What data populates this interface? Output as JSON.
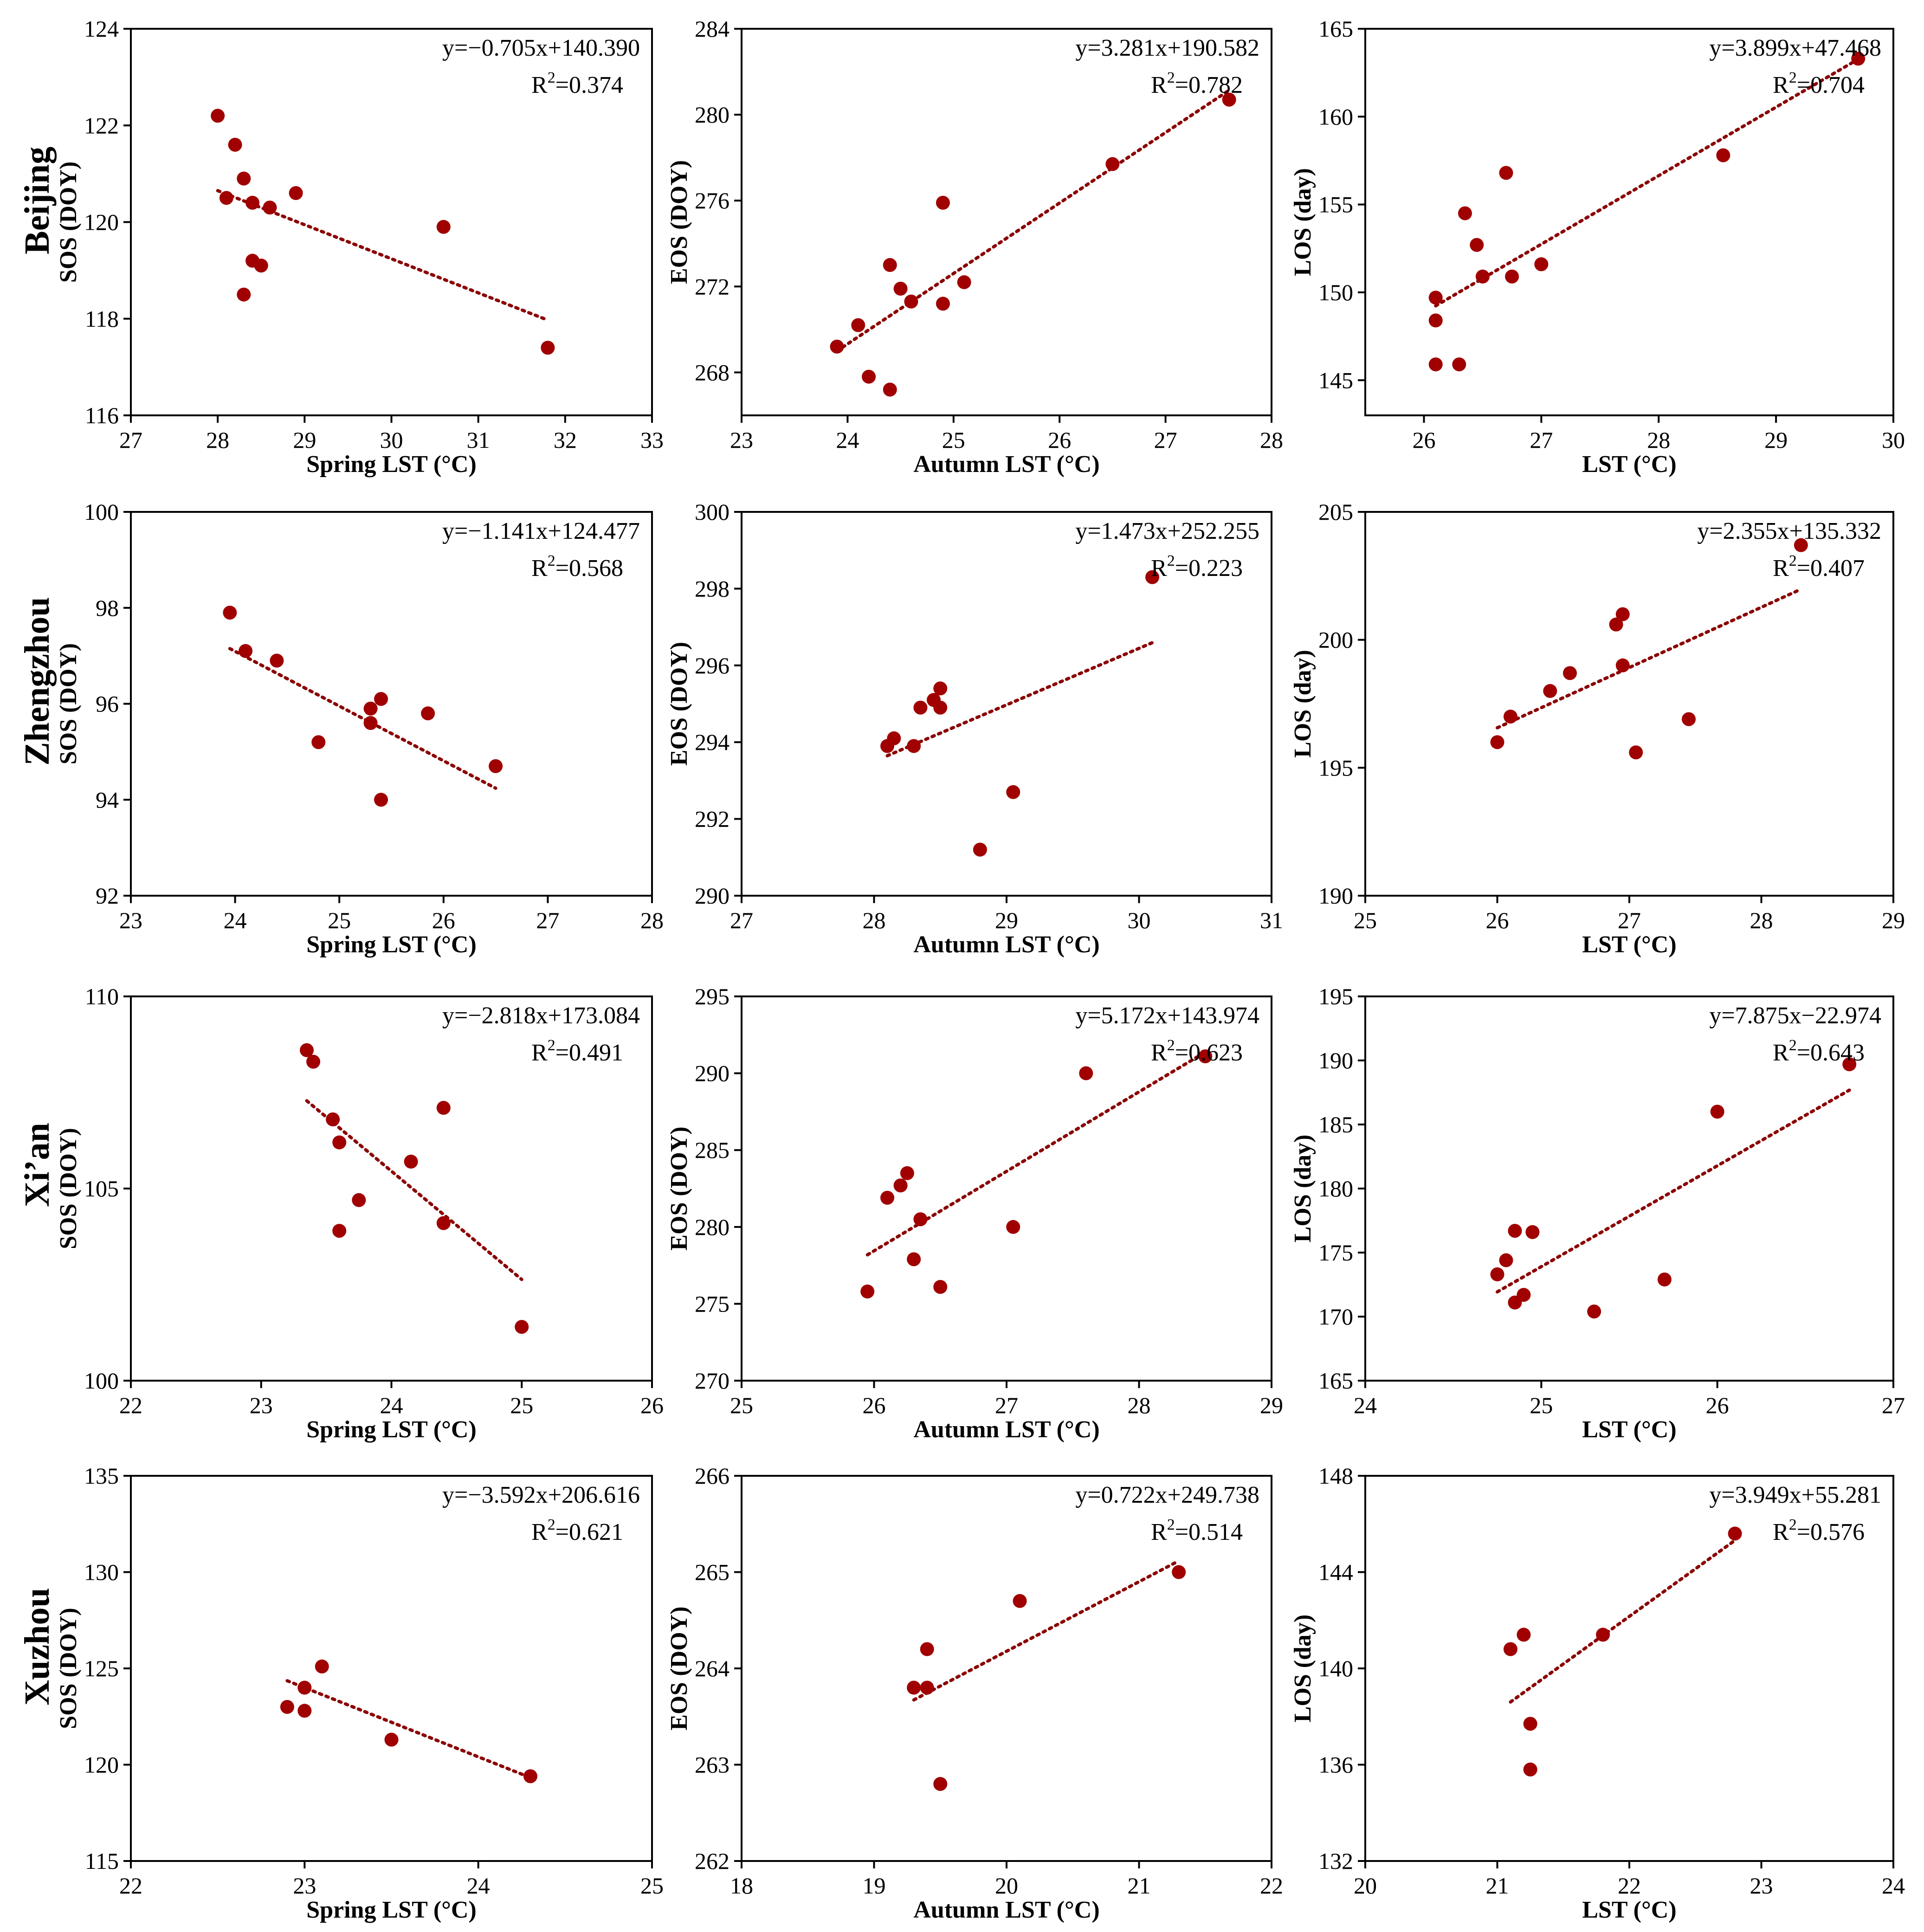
{
  "colors": {
    "point": "#a00000",
    "fit_line": "#8b0000",
    "axis": "#000000"
  },
  "chart_data": [
    {
      "type": "scatter",
      "row": 0,
      "col": 0,
      "city": "Beijing",
      "xlabel": "Spring LST (°C)",
      "ylabel": "SOS (DOY)",
      "xlim": [
        27,
        33
      ],
      "xticks": [
        27,
        28,
        29,
        30,
        31,
        32,
        33
      ],
      "ylim": [
        116,
        124
      ],
      "yticks": [
        116,
        118,
        120,
        122,
        124
      ],
      "equation": "y=−0.705x+140.390",
      "r2_prefix": "R",
      "r2_sup": "2",
      "r2_value": "=0.374",
      "fit_x": [
        28,
        31.8
      ],
      "x": [
        28,
        28.1,
        28.2,
        28.3,
        28.3,
        28.4,
        28.4,
        28.5,
        28.6,
        28.9,
        30.6,
        31.8
      ],
      "y": [
        122.2,
        120.5,
        121.6,
        120.9,
        118.5,
        120.4,
        119.2,
        119.1,
        120.3,
        120.6,
        119.9,
        117.4
      ]
    },
    {
      "type": "scatter",
      "row": 0,
      "col": 1,
      "city": "Beijing",
      "xlabel": "Autumn LST (°C)",
      "ylabel": "EOS (DOY)",
      "xlim": [
        23,
        28
      ],
      "xticks": [
        23,
        24,
        25,
        26,
        27,
        28
      ],
      "ylim": [
        266,
        284
      ],
      "yticks": [
        268,
        272,
        276,
        280,
        284
      ],
      "equation": "y=3.281x+190.582",
      "r2_prefix": "R",
      "r2_sup": "2",
      "r2_value": "=0.782",
      "fit_x": [
        23.9,
        27.6
      ],
      "x": [
        23.9,
        24.1,
        24.2,
        24.4,
        24.4,
        24.5,
        24.6,
        24.9,
        24.9,
        25.1,
        26.5,
        27.6
      ],
      "y": [
        269.2,
        270.2,
        267.8,
        273.0,
        267.2,
        271.9,
        271.3,
        275.9,
        271.2,
        272.2,
        277.7,
        280.7
      ]
    },
    {
      "type": "scatter",
      "row": 0,
      "col": 2,
      "city": "Beijing",
      "xlabel": "LST (°C)",
      "ylabel": "LOS (day)",
      "xlim": [
        25.5,
        30
      ],
      "xticks": [
        26,
        27,
        28,
        29,
        30
      ],
      "ylim": [
        143,
        165
      ],
      "yticks": [
        145,
        150,
        155,
        160,
        165
      ],
      "equation": "y=3.899x+47.468",
      "r2_prefix": "R",
      "r2_sup": "2",
      "r2_value": "=0.704",
      "fit_x": [
        26.1,
        29.7
      ],
      "x": [
        26.1,
        26.1,
        26.1,
        26.3,
        26.35,
        26.45,
        26.5,
        26.7,
        26.75,
        27,
        28.55,
        29.7
      ],
      "y": [
        149.7,
        148.4,
        145.9,
        145.9,
        154.5,
        152.7,
        150.9,
        156.8,
        150.9,
        151.6,
        157.8,
        163.3
      ]
    },
    {
      "type": "scatter",
      "row": 1,
      "col": 0,
      "city": "Zhengzhou",
      "xlabel": "Spring LST (°C)",
      "ylabel": "SOS (DOY)",
      "xlim": [
        23,
        28
      ],
      "xticks": [
        23,
        24,
        25,
        26,
        27,
        28
      ],
      "ylim": [
        92,
        100
      ],
      "yticks": [
        92,
        94,
        96,
        98,
        100
      ],
      "equation": "y=−1.141x+124.477",
      "r2_prefix": "R",
      "r2_sup": "2",
      "r2_value": "=0.568",
      "fit_x": [
        23.95,
        26.5
      ],
      "x": [
        23.95,
        24.1,
        24.4,
        24.8,
        25.3,
        25.3,
        25.4,
        25.4,
        25.85,
        26.5
      ],
      "y": [
        97.9,
        97.1,
        96.9,
        95.2,
        95.9,
        95.6,
        96.1,
        94.0,
        95.8,
        94.7
      ]
    },
    {
      "type": "scatter",
      "row": 1,
      "col": 1,
      "city": "Zhengzhou",
      "xlabel": "Autumn LST (°C)",
      "ylabel": "EOS (DOY)",
      "xlim": [
        27,
        31
      ],
      "xticks": [
        27,
        28,
        29,
        30,
        31
      ],
      "ylim": [
        290,
        300
      ],
      "yticks": [
        290,
        292,
        294,
        296,
        298,
        300
      ],
      "equation": "y=1.473x+252.255",
      "r2_prefix": "R",
      "r2_sup": "2",
      "r2_value": "=0.223",
      "fit_x": [
        28.1,
        30.1
      ],
      "x": [
        28.1,
        28.15,
        28.3,
        28.35,
        28.45,
        28.5,
        28.5,
        28.8,
        29.05,
        30.1
      ],
      "y": [
        293.9,
        294.1,
        293.9,
        294.9,
        295.1,
        295.4,
        294.9,
        291.2,
        292.7,
        298.3
      ]
    },
    {
      "type": "scatter",
      "row": 1,
      "col": 2,
      "city": "Zhengzhou",
      "xlabel": "LST (°C)",
      "ylabel": "LOS (day)",
      "xlim": [
        25,
        29
      ],
      "xticks": [
        25,
        26,
        27,
        28,
        29
      ],
      "ylim": [
        190,
        205
      ],
      "yticks": [
        190,
        195,
        200,
        205
      ],
      "equation": "y=2.355x+135.332",
      "r2_prefix": "R",
      "r2_sup": "2",
      "r2_value": "=0.407",
      "fit_x": [
        26.0,
        28.3
      ],
      "x": [
        26.0,
        26.1,
        26.4,
        26.55,
        26.9,
        26.95,
        26.95,
        27.05,
        27.45,
        28.3
      ],
      "y": [
        196.0,
        197.0,
        198.0,
        198.7,
        200.6,
        199.0,
        201.0,
        195.6,
        196.9,
        203.7
      ]
    },
    {
      "type": "scatter",
      "row": 2,
      "col": 0,
      "city": "Xi’an",
      "xlabel": "Spring LST (°C)",
      "ylabel": "SOS (DOY)",
      "xlim": [
        22,
        26
      ],
      "xticks": [
        22,
        23,
        24,
        25,
        26
      ],
      "ylim": [
        100,
        110
      ],
      "yticks": [
        100,
        105,
        110
      ],
      "equation": "y=−2.818x+173.084",
      "r2_prefix": "R",
      "r2_sup": "2",
      "r2_value": "=0.491",
      "fit_x": [
        23.35,
        25.0
      ],
      "x": [
        23.35,
        23.4,
        23.55,
        23.6,
        23.6,
        23.75,
        24.15,
        24.4,
        24.4,
        25.0
      ],
      "y": [
        108.6,
        108.3,
        106.8,
        106.2,
        103.9,
        104.7,
        105.7,
        107.1,
        104.1,
        101.4
      ]
    },
    {
      "type": "scatter",
      "row": 2,
      "col": 1,
      "city": "Xi’an",
      "xlabel": "Autumn LST (°C)",
      "ylabel": "EOS (DOY)",
      "xlim": [
        25,
        29
      ],
      "xticks": [
        25,
        26,
        27,
        28,
        29
      ],
      "ylim": [
        270,
        295
      ],
      "yticks": [
        270,
        275,
        280,
        285,
        290,
        295
      ],
      "equation": "y=5.172x+143.974",
      "r2_prefix": "R",
      "r2_sup": "2",
      "r2_value": "=0.623",
      "fit_x": [
        25.95,
        28.5
      ],
      "x": [
        25.95,
        26.1,
        26.2,
        26.25,
        26.3,
        26.35,
        26.5,
        27.05,
        27.6,
        28.5
      ],
      "y": [
        275.8,
        281.9,
        282.7,
        283.5,
        277.9,
        280.5,
        276.1,
        280.0,
        290.0,
        291.1
      ]
    },
    {
      "type": "scatter",
      "row": 2,
      "col": 2,
      "city": "Xi’an",
      "xlabel": "LST (°C)",
      "ylabel": "LOS (day)",
      "xlim": [
        24,
        27
      ],
      "xticks": [
        24,
        25,
        26,
        27
      ],
      "ylim": [
        165,
        195
      ],
      "yticks": [
        165,
        170,
        175,
        180,
        185,
        190,
        195
      ],
      "equation": "y=7.875x−22.974",
      "r2_prefix": "R",
      "r2_sup": "2",
      "r2_value": "=0.643",
      "fit_x": [
        24.75,
        26.75
      ],
      "x": [
        24.75,
        24.8,
        24.85,
        24.85,
        24.9,
        24.95,
        25.3,
        25.7,
        26.0,
        26.75
      ],
      "y": [
        173.3,
        174.4,
        171.1,
        176.7,
        171.7,
        176.6,
        170.4,
        172.9,
        186.0,
        189.7
      ]
    },
    {
      "type": "scatter",
      "row": 3,
      "col": 0,
      "city": "Xuzhou",
      "xlabel": "Spring LST (°C)",
      "ylabel": "SOS (DOY)",
      "xlim": [
        22,
        25
      ],
      "xticks": [
        22,
        23,
        24,
        25
      ],
      "ylim": [
        115,
        135
      ],
      "yticks": [
        115,
        120,
        125,
        130,
        135
      ],
      "equation": "y=−3.592x+206.616",
      "r2_prefix": "R",
      "r2_sup": "2",
      "r2_value": "=0.621",
      "fit_x": [
        22.9,
        24.3
      ],
      "x": [
        22.9,
        23.0,
        23.0,
        23.1,
        23.5,
        24.3
      ],
      "y": [
        123.0,
        124.0,
        122.8,
        125.1,
        121.3,
        119.4
      ]
    },
    {
      "type": "scatter",
      "row": 3,
      "col": 1,
      "city": "Xuzhou",
      "xlabel": "Autumn LST (°C)",
      "ylabel": "EOS (DOY)",
      "xlim": [
        18,
        22
      ],
      "xticks": [
        18,
        19,
        20,
        21,
        22
      ],
      "ylim": [
        262,
        266
      ],
      "yticks": [
        262,
        263,
        264,
        265,
        266
      ],
      "equation": "y=0.722x+249.738",
      "r2_prefix": "R",
      "r2_sup": "2",
      "r2_value": "=0.514",
      "fit_x": [
        19.3,
        21.3
      ],
      "x": [
        19.3,
        19.4,
        19.4,
        19.5,
        20.1,
        21.3
      ],
      "y": [
        263.8,
        264.2,
        263.8,
        262.8,
        264.7,
        265.0
      ]
    },
    {
      "type": "scatter",
      "row": 3,
      "col": 2,
      "city": "Xuzhou",
      "xlabel": "LST (°C)",
      "ylabel": "LOS (day)",
      "xlim": [
        20,
        24
      ],
      "xticks": [
        20,
        21,
        22,
        23,
        24
      ],
      "ylim": [
        132,
        148
      ],
      "yticks": [
        132,
        136,
        140,
        144,
        148
      ],
      "equation": "y=3.949x+55.281",
      "r2_prefix": "R",
      "r2_sup": "2",
      "r2_value": "=0.576",
      "fit_x": [
        21.1,
        22.8
      ],
      "x": [
        21.1,
        21.2,
        21.25,
        21.25,
        21.8,
        22.8
      ],
      "y": [
        140.8,
        141.4,
        137.7,
        135.8,
        141.4,
        145.6
      ]
    }
  ]
}
